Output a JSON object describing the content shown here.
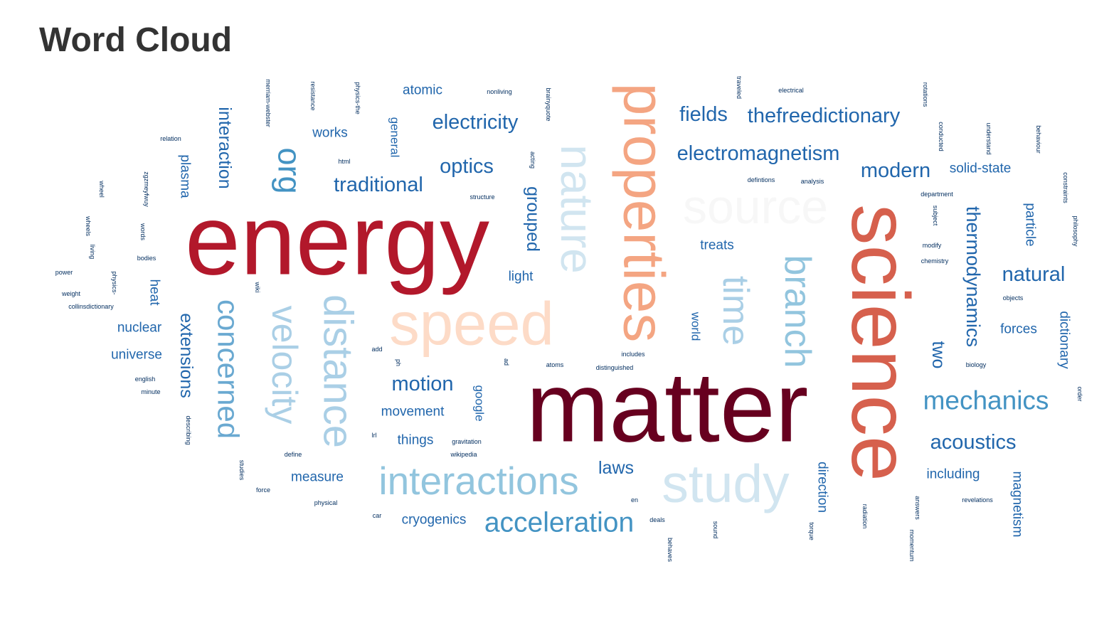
{
  "page": {
    "title": "Word Cloud"
  },
  "colors": {
    "dark_red": "#67001f",
    "red": "#b2182b",
    "coral": "#d6604d",
    "salmon": "#f4a582",
    "peach": "#fddbc7",
    "off_white": "#f7f7f7",
    "pale_blue": "#d1e5f0",
    "light_blue": "#92c5de",
    "mid_blue": "#4393c3",
    "blue": "#2166ac",
    "navy": "#053061"
  },
  "words": [
    {
      "text": "matter",
      "color": "#67001f"
    },
    {
      "text": "energy",
      "color": "#b2182b"
    },
    {
      "text": "science",
      "color": "#d6604d"
    },
    {
      "text": "properties",
      "color": "#f4a582"
    },
    {
      "text": "speed",
      "color": "#fddbc7"
    },
    {
      "text": "source",
      "color": "#f7f7f7"
    },
    {
      "text": "nature",
      "color": "#d1e5f0"
    },
    {
      "text": "study",
      "color": "#d1e5f0"
    },
    {
      "text": "distance",
      "color": "#aacfe6"
    },
    {
      "text": "velocity",
      "color": "#aacfe6"
    },
    {
      "text": "time",
      "color": "#aacfe6"
    },
    {
      "text": "interactions",
      "color": "#92c5de"
    },
    {
      "text": "branch",
      "color": "#92c5de"
    },
    {
      "text": "concerned",
      "color": "#6aa9d1"
    },
    {
      "text": "acceleration",
      "color": "#4393c3"
    },
    {
      "text": "mechanics",
      "color": "#4393c3"
    },
    {
      "text": "org",
      "color": "#4393c3"
    },
    {
      "text": "electromagnetism",
      "color": "#2166ac"
    },
    {
      "text": "thefreedictionary",
      "color": "#2166ac"
    },
    {
      "text": "electricity",
      "color": "#2166ac"
    },
    {
      "text": "acoustics",
      "color": "#2166ac"
    },
    {
      "text": "thermodynamics",
      "color": "#2166ac"
    },
    {
      "text": "traditional",
      "color": "#2166ac"
    },
    {
      "text": "optics",
      "color": "#2166ac"
    },
    {
      "text": "fields",
      "color": "#2166ac"
    },
    {
      "text": "modern",
      "color": "#2166ac"
    },
    {
      "text": "natural",
      "color": "#2166ac"
    },
    {
      "text": "motion",
      "color": "#2166ac"
    },
    {
      "text": "interaction",
      "color": "#2166ac"
    },
    {
      "text": "extensions",
      "color": "#2166ac"
    },
    {
      "text": "grouped",
      "color": "#2166ac"
    },
    {
      "text": "laws",
      "color": "#2166ac"
    },
    {
      "text": "two",
      "color": "#2166ac"
    },
    {
      "text": "direction",
      "color": "#2166ac"
    },
    {
      "text": "magnetism",
      "color": "#2166ac"
    },
    {
      "text": "dictionary",
      "color": "#2166ac"
    },
    {
      "text": "including",
      "color": "#2166ac"
    },
    {
      "text": "forces",
      "color": "#2166ac"
    },
    {
      "text": "atomic",
      "color": "#2166ac"
    },
    {
      "text": "works",
      "color": "#2166ac"
    },
    {
      "text": "plasma",
      "color": "#2166ac"
    },
    {
      "text": "nuclear",
      "color": "#2166ac"
    },
    {
      "text": "universe",
      "color": "#2166ac"
    },
    {
      "text": "heat",
      "color": "#2166ac"
    },
    {
      "text": "light",
      "color": "#2166ac"
    },
    {
      "text": "treats",
      "color": "#2166ac"
    },
    {
      "text": "solid-state",
      "color": "#2166ac"
    },
    {
      "text": "particle",
      "color": "#2166ac"
    },
    {
      "text": "cryogenics",
      "color": "#2166ac"
    },
    {
      "text": "movement",
      "color": "#2166ac"
    },
    {
      "text": "things",
      "color": "#2166ac"
    },
    {
      "text": "measure",
      "color": "#2166ac"
    },
    {
      "text": "general",
      "color": "#2166ac"
    },
    {
      "text": "google",
      "color": "#2166ac"
    },
    {
      "text": "world",
      "color": "#2166ac"
    },
    {
      "text": "merriam-webster",
      "color": "#053061"
    },
    {
      "text": "resistance",
      "color": "#053061"
    },
    {
      "text": "physics-the",
      "color": "#053061"
    },
    {
      "text": "nonliving",
      "color": "#053061"
    },
    {
      "text": "brainyquote",
      "color": "#053061"
    },
    {
      "text": "traveled",
      "color": "#053061"
    },
    {
      "text": "electrical",
      "color": "#053061"
    },
    {
      "text": "rotations",
      "color": "#053061"
    },
    {
      "text": "conducted",
      "color": "#053061"
    },
    {
      "text": "understand",
      "color": "#053061"
    },
    {
      "text": "behaviour",
      "color": "#053061"
    },
    {
      "text": "relation",
      "color": "#053061"
    },
    {
      "text": "html",
      "color": "#053061"
    },
    {
      "text": "acting",
      "color": "#053061"
    },
    {
      "text": "defintions",
      "color": "#053061"
    },
    {
      "text": "analysis",
      "color": "#053061"
    },
    {
      "text": "constraints",
      "color": "#053061"
    },
    {
      "text": "wheel",
      "color": "#053061"
    },
    {
      "text": "zgzmeyfwuy",
      "color": "#053061"
    },
    {
      "text": "structure",
      "color": "#053061"
    },
    {
      "text": "department",
      "color": "#053061"
    },
    {
      "text": "subject",
      "color": "#053061"
    },
    {
      "text": "philosophy",
      "color": "#053061"
    },
    {
      "text": "wheels",
      "color": "#053061"
    },
    {
      "text": "words",
      "color": "#053061"
    },
    {
      "text": "modify",
      "color": "#053061"
    },
    {
      "text": "living",
      "color": "#053061"
    },
    {
      "text": "bodies",
      "color": "#053061"
    },
    {
      "text": "chemistry",
      "color": "#053061"
    },
    {
      "text": "power",
      "color": "#053061"
    },
    {
      "text": "physics-",
      "color": "#053061"
    },
    {
      "text": "weight",
      "color": "#053061"
    },
    {
      "text": "wiki",
      "color": "#053061"
    },
    {
      "text": "objects",
      "color": "#053061"
    },
    {
      "text": "collinsdictionary",
      "color": "#053061"
    },
    {
      "text": "includes",
      "color": "#053061"
    },
    {
      "text": "add",
      "color": "#053061"
    },
    {
      "text": "ph",
      "color": "#053061"
    },
    {
      "text": "ad",
      "color": "#053061"
    },
    {
      "text": "atoms",
      "color": "#053061"
    },
    {
      "text": "distinguished",
      "color": "#053061"
    },
    {
      "text": "biology",
      "color": "#053061"
    },
    {
      "text": "english",
      "color": "#053061"
    },
    {
      "text": "minute",
      "color": "#053061"
    },
    {
      "text": "order",
      "color": "#053061"
    },
    {
      "text": "describing",
      "color": "#053061"
    },
    {
      "text": "lrl",
      "color": "#053061"
    },
    {
      "text": "gravitation",
      "color": "#053061"
    },
    {
      "text": "wikipedia",
      "color": "#053061"
    },
    {
      "text": "define",
      "color": "#053061"
    },
    {
      "text": "studies",
      "color": "#053061"
    },
    {
      "text": "force",
      "color": "#053061"
    },
    {
      "text": "physical",
      "color": "#053061"
    },
    {
      "text": "en",
      "color": "#053061"
    },
    {
      "text": "radiation",
      "color": "#053061"
    },
    {
      "text": "answers",
      "color": "#053061"
    },
    {
      "text": "revelations",
      "color": "#053061"
    },
    {
      "text": "car",
      "color": "#053061"
    },
    {
      "text": "deals",
      "color": "#053061"
    },
    {
      "text": "sound",
      "color": "#053061"
    },
    {
      "text": "torque",
      "color": "#053061"
    },
    {
      "text": "momentum",
      "color": "#053061"
    },
    {
      "text": "behaves",
      "color": "#053061"
    }
  ]
}
